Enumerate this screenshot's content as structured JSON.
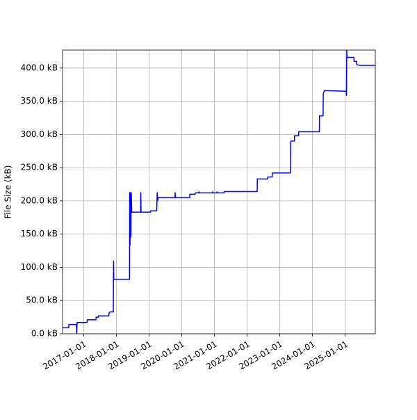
{
  "chart_data": {
    "type": "line",
    "ylabel": "File Size (kB)",
    "color": "#0000ff",
    "grid": true,
    "xlim": [
      "2016-05-10",
      "2025-12-03"
    ],
    "xticks": [
      "2017-01-01",
      "2018-01-01",
      "2019-01-01",
      "2020-01-01",
      "2021-01-01",
      "2022-01-01",
      "2023-01-01",
      "2024-01-01",
      "2025-01-01"
    ],
    "ylim": [
      0,
      427
    ],
    "yticks": [
      {
        "value": 0,
        "label": "0.0 kB"
      },
      {
        "value": 50,
        "label": "50.0 kB"
      },
      {
        "value": 100,
        "label": "100.0 kB"
      },
      {
        "value": 150,
        "label": "150.0 kB"
      },
      {
        "value": 200,
        "label": "200.0 kB"
      },
      {
        "value": 250,
        "label": "250.0 kB"
      },
      {
        "value": 300,
        "label": "300.0 kB"
      },
      {
        "value": 350,
        "label": "350.0 kB"
      },
      {
        "value": 400,
        "label": "400.0 kB"
      }
    ],
    "x": [
      "2016-05-10",
      "2016-07-18",
      "2016-07-20",
      "2016-10-12",
      "2016-10-15",
      "2016-10-20",
      "2017-02-08",
      "2017-02-10",
      "2017-05-18",
      "2017-05-20",
      "2017-06-13",
      "2017-06-15",
      "2017-10-08",
      "2017-10-10",
      "2017-10-25",
      "2017-11-28",
      "2017-12-01",
      "2017-12-04",
      "2018-05-28",
      "2018-05-30",
      "2018-06-03",
      "2018-06-08",
      "2018-06-12",
      "2018-06-17",
      "2018-06-22",
      "2018-09-29",
      "2018-10-01",
      "2018-10-04",
      "2019-01-18",
      "2019-01-20",
      "2019-03-28",
      "2019-03-30",
      "2019-04-02",
      "2019-04-06",
      "2019-04-15",
      "2019-10-18",
      "2019-10-20",
      "2019-10-23",
      "2020-03-30",
      "2020-04-01",
      "2020-05-30",
      "2020-06-01",
      "2020-07-08",
      "2020-07-10",
      "2020-07-14",
      "2020-12-08",
      "2020-12-10",
      "2020-12-13",
      "2021-01-28",
      "2021-01-30",
      "2021-02-02",
      "2021-04-18",
      "2021-04-20",
      "2022-04-23",
      "2022-04-25",
      "2022-08-18",
      "2022-08-20",
      "2022-10-08",
      "2022-10-10",
      "2023-04-29",
      "2023-05-01",
      "2023-05-04",
      "2023-06-13",
      "2023-06-15",
      "2023-07-30",
      "2023-08-01",
      "2024-03-18",
      "2024-03-20",
      "2024-04-29",
      "2024-05-01",
      "2024-05-15",
      "2025-01-13",
      "2025-01-15",
      "2025-01-18",
      "2025-01-22",
      "2025-04-08",
      "2025-04-10",
      "2025-05-08",
      "2025-05-10",
      "2025-06-10",
      "2025-12-03"
    ],
    "values": [
      9,
      9,
      14,
      14,
      0,
      17,
      17,
      21,
      21,
      25,
      25,
      27,
      27,
      31,
      33,
      33,
      110,
      82,
      82,
      213,
      133,
      213,
      145,
      213,
      183,
      183,
      213,
      183,
      183,
      185,
      185,
      196,
      213,
      200,
      205,
      205,
      213,
      205,
      205,
      210,
      210,
      212,
      212,
      214,
      212,
      212,
      214,
      212,
      212,
      214,
      212,
      212,
      214,
      214,
      233,
      233,
      236,
      236,
      242,
      242,
      270,
      290,
      290,
      298,
      298,
      304,
      304,
      328,
      328,
      362,
      366,
      365,
      358,
      427,
      416,
      416,
      410,
      410,
      405,
      404,
      404
    ]
  }
}
